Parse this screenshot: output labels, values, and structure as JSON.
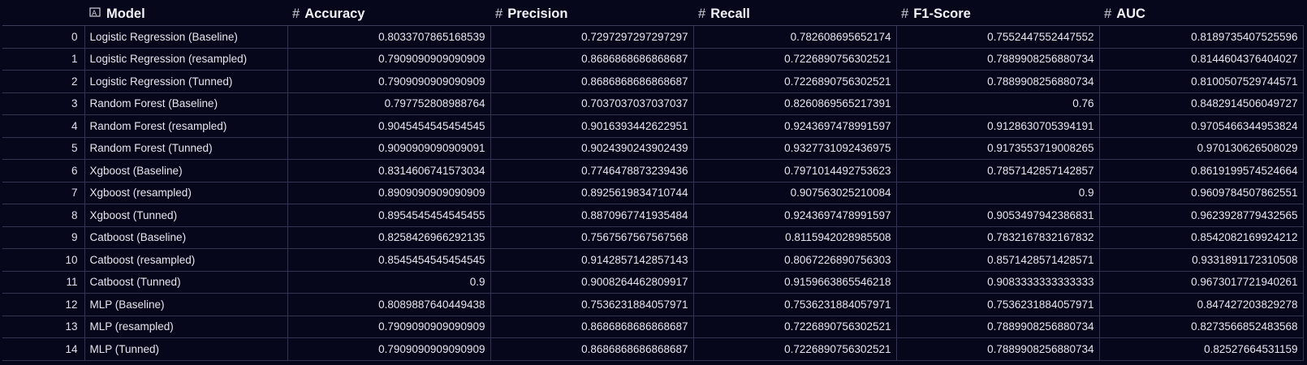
{
  "table": {
    "columns": [
      {
        "label": "Model",
        "icon": "text-type-icon"
      },
      {
        "label": "Accuracy",
        "icon": "number-hash-icon"
      },
      {
        "label": "Precision",
        "icon": "number-hash-icon"
      },
      {
        "label": "Recall",
        "icon": "number-hash-icon"
      },
      {
        "label": "F1-Score",
        "icon": "number-hash-icon"
      },
      {
        "label": "AUC",
        "icon": "number-hash-icon"
      }
    ],
    "rows": [
      {
        "index": "0",
        "model": "Logistic Regression (Baseline)",
        "accuracy": "0.8033707865168539",
        "precision": "0.7297297297297297",
        "recall": "0.782608695652174",
        "f1": "0.7552447552447552",
        "auc": "0.8189735407525596"
      },
      {
        "index": "1",
        "model": "Logistic Regression (resampled)",
        "accuracy": "0.7909090909090909",
        "precision": "0.8686868686868687",
        "recall": "0.7226890756302521",
        "f1": "0.7889908256880734",
        "auc": "0.8144604376404027"
      },
      {
        "index": "2",
        "model": "Logistic Regression (Tunned)",
        "accuracy": "0.7909090909090909",
        "precision": "0.8686868686868687",
        "recall": "0.7226890756302521",
        "f1": "0.7889908256880734",
        "auc": "0.8100507529744571"
      },
      {
        "index": "3",
        "model": "Random Forest (Baseline)",
        "accuracy": "0.797752808988764",
        "precision": "0.7037037037037037",
        "recall": "0.8260869565217391",
        "f1": "0.76",
        "auc": "0.8482914506049727"
      },
      {
        "index": "4",
        "model": "Random Forest (resampled)",
        "accuracy": "0.9045454545454545",
        "precision": "0.9016393442622951",
        "recall": "0.9243697478991597",
        "f1": "0.9128630705394191",
        "auc": "0.9705466344953824"
      },
      {
        "index": "5",
        "model": "Random Forest (Tunned)",
        "accuracy": "0.9090909090909091",
        "precision": "0.9024390243902439",
        "recall": "0.9327731092436975",
        "f1": "0.9173553719008265",
        "auc": "0.970130626508029"
      },
      {
        "index": "6",
        "model": "Xgboost (Baseline)",
        "accuracy": "0.8314606741573034",
        "precision": "0.7746478873239436",
        "recall": "0.7971014492753623",
        "f1": "0.7857142857142857",
        "auc": "0.8619199574524664"
      },
      {
        "index": "7",
        "model": "Xgboost (resampled)",
        "accuracy": "0.8909090909090909",
        "precision": "0.8925619834710744",
        "recall": "0.907563025210084",
        "f1": "0.9",
        "auc": "0.9609784507862551"
      },
      {
        "index": "8",
        "model": "Xgboost (Tunned)",
        "accuracy": "0.8954545454545455",
        "precision": "0.8870967741935484",
        "recall": "0.9243697478991597",
        "f1": "0.9053497942386831",
        "auc": "0.9623928779432565"
      },
      {
        "index": "9",
        "model": "Catboost (Baseline)",
        "accuracy": "0.8258426966292135",
        "precision": "0.7567567567567568",
        "recall": "0.8115942028985508",
        "f1": "0.7832167832167832",
        "auc": "0.8542082169924212"
      },
      {
        "index": "10",
        "model": "Catboost (resampled)",
        "accuracy": "0.8545454545454545",
        "precision": "0.9142857142857143",
        "recall": "0.8067226890756303",
        "f1": "0.8571428571428571",
        "auc": "0.9331891172310508"
      },
      {
        "index": "11",
        "model": "Catboost (Tunned)",
        "accuracy": "0.9",
        "precision": "0.9008264462809917",
        "recall": "0.9159663865546218",
        "f1": "0.9083333333333333",
        "auc": "0.9673017721940261"
      },
      {
        "index": "12",
        "model": "MLP (Baseline)",
        "accuracy": "0.8089887640449438",
        "precision": "0.7536231884057971",
        "recall": "0.7536231884057971",
        "f1": "0.7536231884057971",
        "auc": "0.847427203829278"
      },
      {
        "index": "13",
        "model": "MLP (resampled)",
        "accuracy": "0.7909090909090909",
        "precision": "0.8686868686868687",
        "recall": "0.7226890756302521",
        "f1": "0.7889908256880734",
        "auc": "0.8273566852483568"
      },
      {
        "index": "14",
        "model": "MLP (Tunned)",
        "accuracy": "0.7909090909090909",
        "precision": "0.8686868686868687",
        "recall": "0.7226890756302521",
        "f1": "0.7889908256880734",
        "auc": "0.82527664531159"
      }
    ]
  }
}
